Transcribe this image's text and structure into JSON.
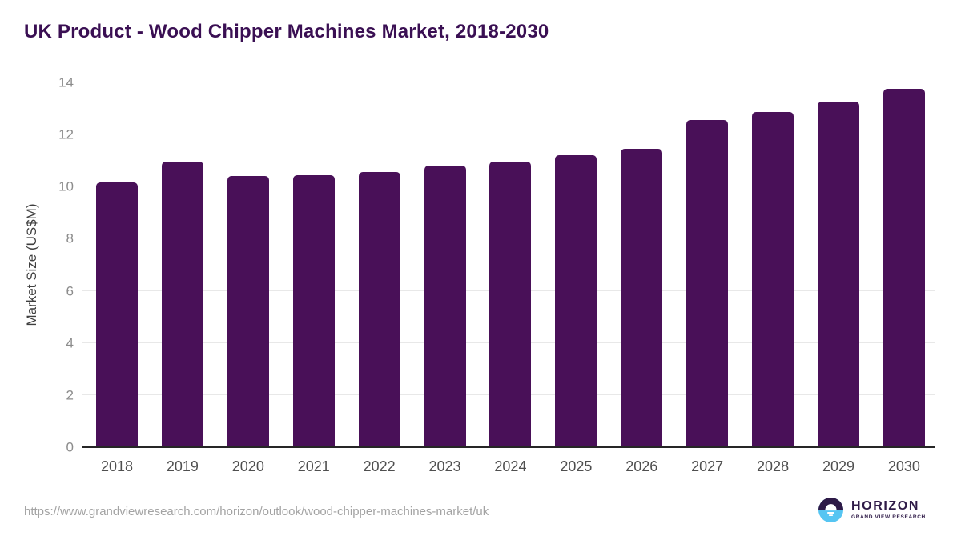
{
  "page": {
    "title": "UK Product - Wood Chipper Machines Market, 2018-2030",
    "source_url": "https://www.grandviewresearch.com/horizon/outlook/wood-chipper-machines-market/uk"
  },
  "chart_data": {
    "type": "bar",
    "title": "UK Product - Wood Chipper Machines Market, 2018-2030",
    "categories": [
      "2018",
      "2019",
      "2020",
      "2021",
      "2022",
      "2023",
      "2024",
      "2025",
      "2026",
      "2027",
      "2028",
      "2029",
      "2030"
    ],
    "values": [
      10.15,
      10.95,
      10.4,
      10.45,
      10.55,
      10.8,
      10.95,
      11.2,
      11.45,
      12.55,
      12.85,
      13.25,
      13.75
    ],
    "xlabel": "",
    "ylabel": "Market Size (US$M)",
    "ylim": [
      0,
      14
    ],
    "ytick_step": 2,
    "yticks": [
      0,
      2,
      4,
      6,
      8,
      10,
      12,
      14
    ],
    "grid": true,
    "legend": false
  },
  "branding": {
    "logo_name": "HORIZON",
    "logo_subtext": "GRAND VIEW RESEARCH"
  },
  "colors": {
    "title": "#3a0f53",
    "bar": "#491058",
    "axis_line": "#262626",
    "gridline": "#e8e8e8",
    "ytick_label": "#8c8c8c",
    "xtick_label": "#4f4f4f",
    "axis_title": "#3f3f3f",
    "source_url_text": "#a3a3a3",
    "logo_purple": "#2e1a47",
    "logo_blue": "#56c5f2"
  }
}
